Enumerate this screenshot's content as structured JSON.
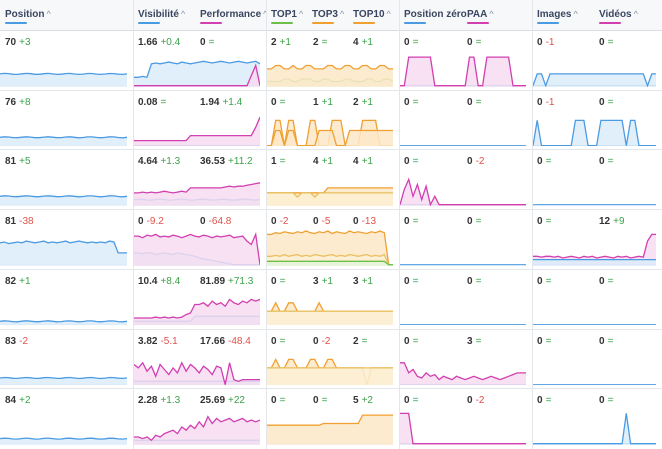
{
  "colors": {
    "blue": "#4b9be3",
    "blue_fill": "#dcecfa",
    "pink": "#d23fb0",
    "pink_fill": "#f6dcf0",
    "green": "#6cc04a",
    "green_fill": "#e3f4da",
    "orange": "#f0a030",
    "orange_fill": "#fde8c8",
    "gold": "#e8c060",
    "gold_fill": "#fbf0d4"
  },
  "headers": {
    "position": "Position",
    "visibilite": "Visibilité",
    "performance": "Performance",
    "top1": "TOP1",
    "top3": "TOP3",
    "top10": "TOP10",
    "position_zero": "Position zéro",
    "paa": "PAA",
    "images": "Images",
    "videos": "Vidéos",
    "sort_icon": "^"
  },
  "rows": [
    {
      "position": {
        "v": "70",
        "d": "+3",
        "t": "pos"
      },
      "visibilite": {
        "v": "1.66",
        "d": "+0.4",
        "t": "pos"
      },
      "performance": {
        "v": "0",
        "d": "=",
        "t": "neu"
      },
      "top1": {
        "v": "2",
        "d": "+1",
        "t": "pos"
      },
      "top3": {
        "v": "2",
        "d": "=",
        "t": "neu"
      },
      "top10": {
        "v": "4",
        "d": "+1",
        "t": "pos"
      },
      "pz": {
        "v": "0",
        "d": "=",
        "t": "neu"
      },
      "paa": {
        "v": "0",
        "d": "=",
        "t": "neu"
      },
      "images": {
        "v": "0",
        "d": "-1",
        "t": "neg"
      },
      "videos": {
        "v": "0",
        "d": "=",
        "t": "neu"
      }
    },
    {
      "position": {
        "v": "76",
        "d": "+8",
        "t": "pos"
      },
      "visibilite": {
        "v": "0.08",
        "d": "=",
        "t": "neu"
      },
      "performance": {
        "v": "1.94",
        "d": "+1.4",
        "t": "pos"
      },
      "top1": {
        "v": "0",
        "d": "=",
        "t": "neu"
      },
      "top3": {
        "v": "1",
        "d": "+1",
        "t": "pos"
      },
      "top10": {
        "v": "2",
        "d": "+1",
        "t": "pos"
      },
      "pz": {
        "v": "0",
        "d": "=",
        "t": "neu"
      },
      "paa": {
        "v": "0",
        "d": "=",
        "t": "neu"
      },
      "images": {
        "v": "0",
        "d": "-1",
        "t": "neg"
      },
      "videos": {
        "v": "0",
        "d": "=",
        "t": "neu"
      }
    },
    {
      "position": {
        "v": "81",
        "d": "+5",
        "t": "pos"
      },
      "visibilite": {
        "v": "4.64",
        "d": "+1.3",
        "t": "pos"
      },
      "performance": {
        "v": "36.53",
        "d": "+11.2",
        "t": "pos"
      },
      "top1": {
        "v": "1",
        "d": "=",
        "t": "neu"
      },
      "top3": {
        "v": "4",
        "d": "+1",
        "t": "pos"
      },
      "top10": {
        "v": "4",
        "d": "+1",
        "t": "pos"
      },
      "pz": {
        "v": "0",
        "d": "=",
        "t": "neu"
      },
      "paa": {
        "v": "0",
        "d": "-2",
        "t": "neg"
      },
      "images": {
        "v": "0",
        "d": "=",
        "t": "neu"
      },
      "videos": {
        "v": "0",
        "d": "=",
        "t": "neu"
      }
    },
    {
      "position": {
        "v": "81",
        "d": "-38",
        "t": "neg"
      },
      "visibilite": {
        "v": "0",
        "d": "-9.2",
        "t": "neg"
      },
      "performance": {
        "v": "0",
        "d": "-64.8",
        "t": "neg"
      },
      "top1": {
        "v": "0",
        "d": "-2",
        "t": "neg"
      },
      "top3": {
        "v": "0",
        "d": "-5",
        "t": "neg"
      },
      "top10": {
        "v": "0",
        "d": "-13",
        "t": "neg"
      },
      "pz": {
        "v": "0",
        "d": "=",
        "t": "neu"
      },
      "paa": {
        "v": "0",
        "d": "=",
        "t": "neu"
      },
      "images": {
        "v": "0",
        "d": "=",
        "t": "neu"
      },
      "videos": {
        "v": "12",
        "d": "+9",
        "t": "pos"
      }
    },
    {
      "position": {
        "v": "82",
        "d": "+1",
        "t": "pos"
      },
      "visibilite": {
        "v": "10.4",
        "d": "+8.4",
        "t": "pos"
      },
      "performance": {
        "v": "81.89",
        "d": "+71.3",
        "t": "pos"
      },
      "top1": {
        "v": "0",
        "d": "=",
        "t": "neu"
      },
      "top3": {
        "v": "3",
        "d": "+1",
        "t": "pos"
      },
      "top10": {
        "v": "3",
        "d": "+1",
        "t": "pos"
      },
      "pz": {
        "v": "0",
        "d": "=",
        "t": "neu"
      },
      "paa": {
        "v": "0",
        "d": "=",
        "t": "neu"
      },
      "images": {
        "v": "0",
        "d": "=",
        "t": "neu"
      },
      "videos": {
        "v": "0",
        "d": "=",
        "t": "neu"
      }
    },
    {
      "position": {
        "v": "83",
        "d": "-2",
        "t": "neg"
      },
      "visibilite": {
        "v": "3.82",
        "d": "-5.1",
        "t": "neg"
      },
      "performance": {
        "v": "17.66",
        "d": "-48.4",
        "t": "neg"
      },
      "top1": {
        "v": "0",
        "d": "=",
        "t": "neu"
      },
      "top3": {
        "v": "0",
        "d": "-2",
        "t": "neg"
      },
      "top10": {
        "v": "2",
        "d": "=",
        "t": "neu"
      },
      "pz": {
        "v": "0",
        "d": "=",
        "t": "neu"
      },
      "paa": {
        "v": "3",
        "d": "=",
        "t": "neu"
      },
      "images": {
        "v": "0",
        "d": "=",
        "t": "neu"
      },
      "videos": {
        "v": "0",
        "d": "=",
        "t": "neu"
      }
    },
    {
      "position": {
        "v": "84",
        "d": "+2",
        "t": "pos"
      },
      "visibilite": {
        "v": "2.28",
        "d": "+1.3",
        "t": "pos"
      },
      "performance": {
        "v": "25.69",
        "d": "+22",
        "t": "pos"
      },
      "top1": {
        "v": "0",
        "d": "=",
        "t": "neu"
      },
      "top3": {
        "v": "0",
        "d": "=",
        "t": "neu"
      },
      "top10": {
        "v": "5",
        "d": "+2",
        "t": "pos"
      },
      "pz": {
        "v": "0",
        "d": "=",
        "t": "neu"
      },
      "paa": {
        "v": "0",
        "d": "-2",
        "t": "neg"
      },
      "images": {
        "v": "0",
        "d": "=",
        "t": "neu"
      },
      "videos": {
        "v": "0",
        "d": "=",
        "t": "neu"
      }
    }
  ]
}
